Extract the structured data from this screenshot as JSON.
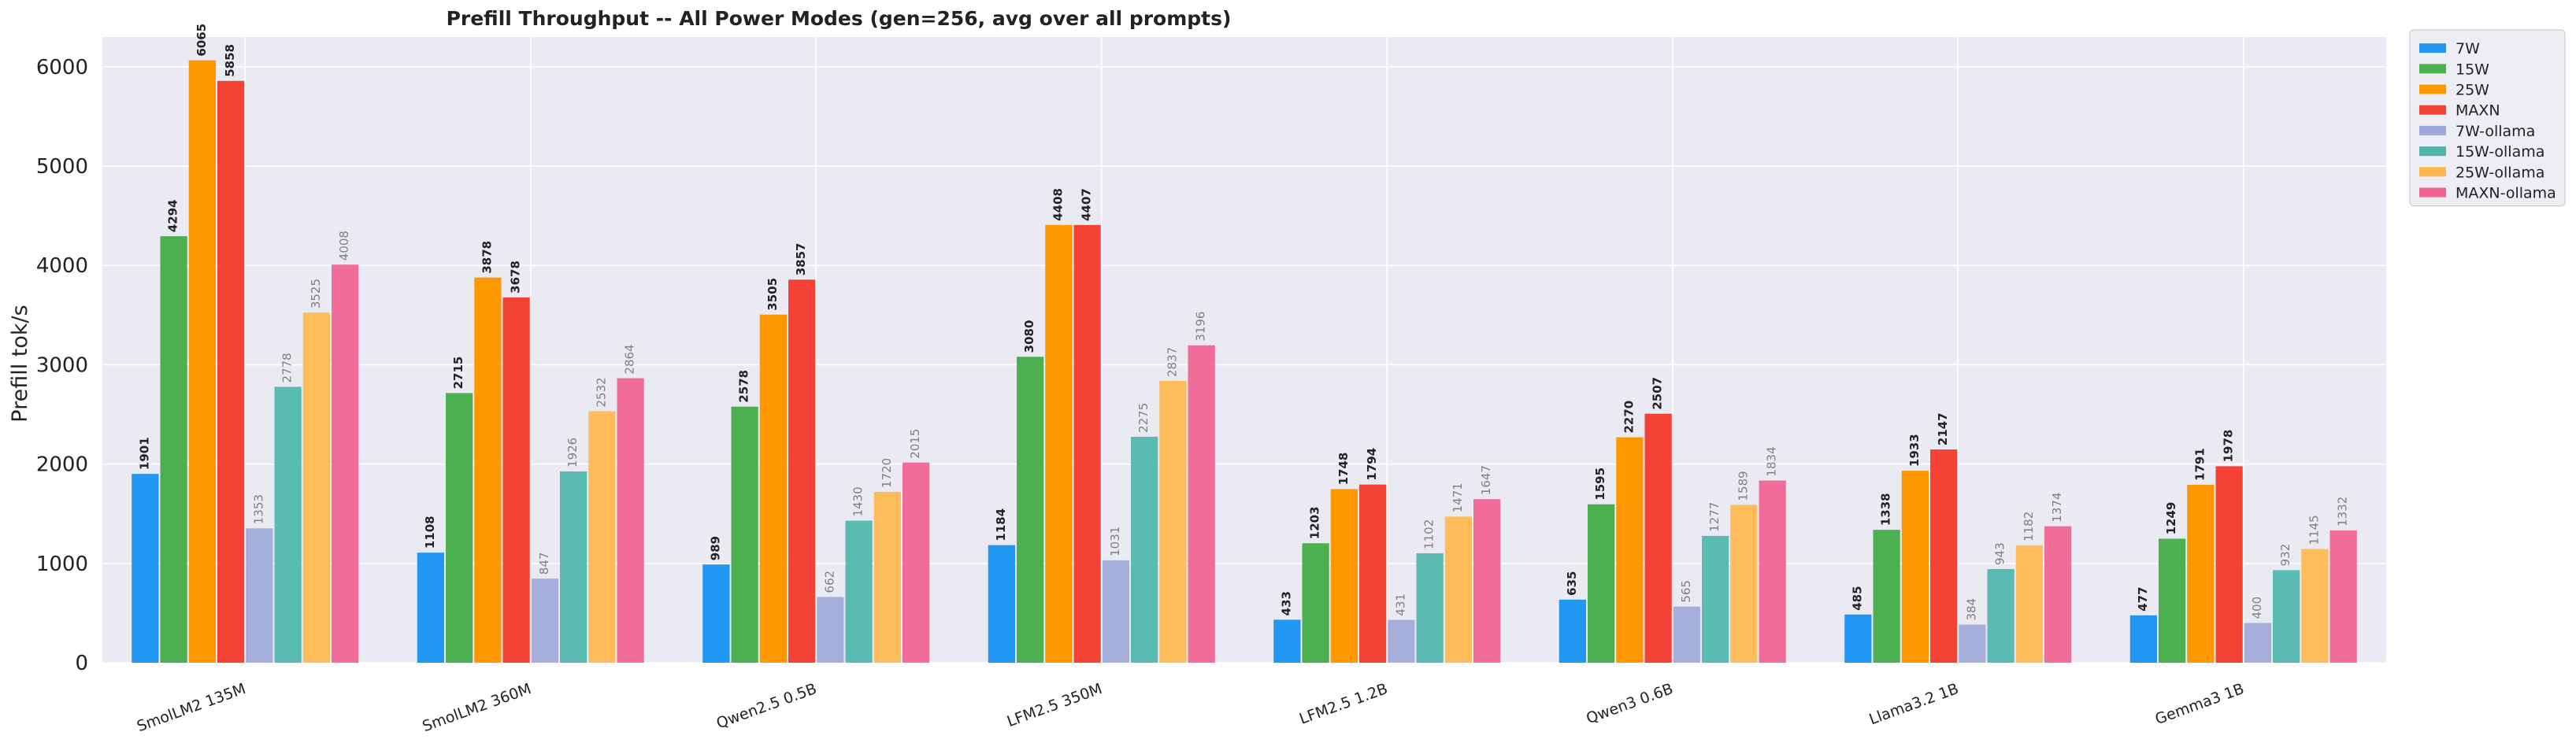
{
  "chart_data": {
    "type": "bar",
    "title": "Prefill Throughput -- All Power Modes (gen=256, avg over all prompts)",
    "xlabel": "",
    "ylabel": "Prefill tok/s",
    "ylim": [
      0,
      6300
    ],
    "yticks": [
      0,
      1000,
      2000,
      3000,
      4000,
      5000,
      6000
    ],
    "grid": true,
    "legend_position": "outside-top-right",
    "categories": [
      "SmolLM2 135M",
      "SmolLM2 360M",
      "Qwen2.5 0.5B",
      "LFM2.5 350M",
      "LFM2.5 1.2B",
      "Qwen3 0.6B",
      "Llama3.2 1B",
      "Gemma3 1B"
    ],
    "series": [
      {
        "name": "7W",
        "color": "#2196f3",
        "style": "solid",
        "values": [
          1901,
          1108,
          989,
          1184,
          433,
          635,
          485,
          477
        ]
      },
      {
        "name": "15W",
        "color": "#4caf50",
        "style": "solid",
        "values": [
          4294,
          2715,
          2578,
          3080,
          1203,
          1595,
          1338,
          1249
        ]
      },
      {
        "name": "25W",
        "color": "#ff9800",
        "style": "solid",
        "values": [
          6065,
          3878,
          3505,
          4408,
          1748,
          2270,
          1933,
          1791
        ]
      },
      {
        "name": "MAXN",
        "color": "#f44336",
        "style": "solid",
        "values": [
          5858,
          3678,
          3857,
          4407,
          1794,
          2507,
          2147,
          1978
        ]
      },
      {
        "name": "7W-ollama",
        "color": "#9fa8da",
        "style": "ollama",
        "values": [
          1353,
          847,
          662,
          1031,
          431,
          565,
          384,
          400
        ]
      },
      {
        "name": "15W-ollama",
        "color": "#4db6ac",
        "style": "ollama",
        "values": [
          2778,
          1926,
          1430,
          2275,
          1102,
          1277,
          943,
          932
        ]
      },
      {
        "name": "25W-ollama",
        "color": "#ffb74d",
        "style": "ollama",
        "values": [
          3525,
          2532,
          1720,
          2837,
          1471,
          1589,
          1182,
          1145
        ]
      },
      {
        "name": "MAXN-ollama",
        "color": "#f06292",
        "style": "ollama",
        "values": [
          4008,
          2864,
          2015,
          3196,
          1647,
          1834,
          1374,
          1332
        ]
      }
    ],
    "colors": {
      "plot_background": "#eaeaf2",
      "grid": "#ffffff",
      "text": "#222222",
      "ollama_label": "#808080"
    }
  }
}
